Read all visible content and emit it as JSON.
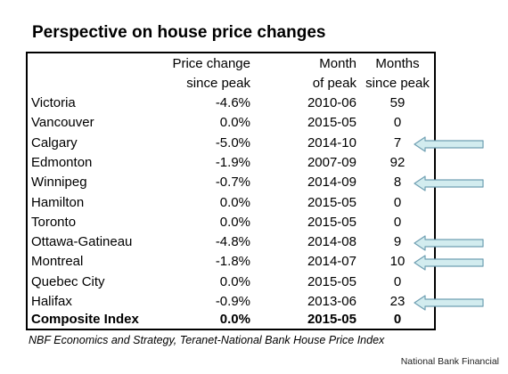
{
  "title": "Perspective on house price changes",
  "headers": {
    "change_l1": "Price change",
    "change_l2": "since peak",
    "month_l1": "Month",
    "month_l2": "of peak",
    "months_l1": "Months",
    "months_l2": "since peak"
  },
  "rows": [
    {
      "city": "Victoria",
      "change": "-4.6%",
      "month": "2010-06",
      "months": "59",
      "arrow": false
    },
    {
      "city": "Vancouver",
      "change": "0.0%",
      "month": "2015-05",
      "months": "0",
      "arrow": false
    },
    {
      "city": "Calgary",
      "change": "-5.0%",
      "month": "2014-10",
      "months": "7",
      "arrow": true
    },
    {
      "city": "Edmonton",
      "change": "-1.9%",
      "month": "2007-09",
      "months": "92",
      "arrow": false
    },
    {
      "city": "Winnipeg",
      "change": "-0.7%",
      "month": "2014-09",
      "months": "8",
      "arrow": true
    },
    {
      "city": "Hamilton",
      "change": "0.0%",
      "month": "2015-05",
      "months": "0",
      "arrow": false
    },
    {
      "city": "Toronto",
      "change": "0.0%",
      "month": "2015-05",
      "months": "0",
      "arrow": false
    },
    {
      "city": "Ottawa-Gatineau",
      "change": "-4.8%",
      "month": "2014-08",
      "months": "9",
      "arrow": true
    },
    {
      "city": "Montreal",
      "change": "-1.8%",
      "month": "2014-07",
      "months": "10",
      "arrow": true
    },
    {
      "city": "Quebec City",
      "change": "0.0%",
      "month": "2015-05",
      "months": "0",
      "arrow": false
    },
    {
      "city": "Halifax",
      "change": "-0.9%",
      "month": "2013-06",
      "months": "23",
      "arrow": true
    }
  ],
  "composite": {
    "city": "Composite Index",
    "change": "0.0%",
    "month": "2015-05",
    "months": "0"
  },
  "source": "NBF Economics and Strategy, Teranet-National Bank House Price Index",
  "credit": "National Bank Financial",
  "colors": {
    "arrow_fill": "#d2ecef",
    "arrow_stroke": "#6f9fb2"
  }
}
